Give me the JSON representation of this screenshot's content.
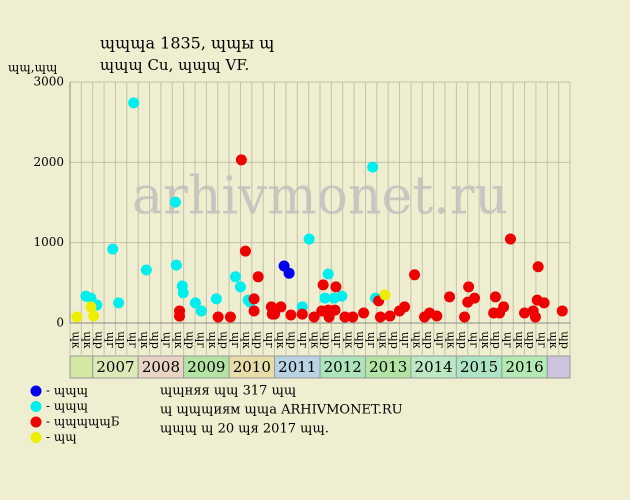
{
  "chart_data": {
    "type": "scatter",
    "title": "ɰɰɰа 1835, ɰɰы ɰ",
    "subtitle": "ɰɰɰ Cu, ɰɰɰ VF.",
    "y_label": "ɰɰ,ɰɰ",
    "watermark": "arhivmonet.ru",
    "xlim": [
      2006.5,
      2017.5
    ],
    "ylim": [
      0,
      3000
    ],
    "yticks": [
      0,
      1000,
      2000,
      3000
    ],
    "grid": true,
    "categories": [
      "ɰк",
      "ɰк",
      "ɰр",
      "ɰг",
      "ɰр",
      "ɰг",
      "ɰк",
      "ɰр",
      "ɰг",
      "ɰк",
      "ɰр",
      "ɰг",
      "ɰк",
      "ɰр",
      "ɰг",
      "ɰк",
      "ɰр",
      "ɰг",
      "ɰк",
      "ɰр",
      "ɰг",
      "ɰк",
      "ɰр",
      "ɰг",
      "ɰк",
      "ɰр",
      "ɰг",
      "ɰк",
      "ɰр",
      "ɰг",
      "ɰк",
      "ɰр",
      "ɰг",
      "ɰк",
      "ɰр",
      "ɰг",
      "ɰк",
      "ɰр",
      "ɰг",
      "ɰк",
      "ɰр",
      "ɰг",
      "ɰк",
      "ɰр"
    ],
    "year_cells": [
      {
        "label": null,
        "color": "#d4e8a4"
      },
      {
        "label": "2007",
        "color": "#dceab8"
      },
      {
        "label": "2008",
        "color": "#e8d4c4"
      },
      {
        "label": "2009",
        "color": "#b4e4a4"
      },
      {
        "label": "2010",
        "color": "#e8dca8"
      },
      {
        "label": "2011",
        "color": "#b8d4e4"
      },
      {
        "label": "2012",
        "color": "#ace4bc"
      },
      {
        "label": "2013",
        "color": "#b4e4a4"
      },
      {
        "label": "2014",
        "color": "#bce8c4"
      },
      {
        "label": "2015",
        "color": "#ace4c4"
      },
      {
        "label": "2016",
        "color": "#b4eab4"
      },
      {
        "label": null,
        "color": "#ccc4dc"
      }
    ],
    "series": [
      {
        "name": "- ɰɰɰ",
        "color": "#0000ee",
        "x": [
          2011.21,
          2011.32
        ],
        "values": [
          710,
          620
        ]
      },
      {
        "name": "- ɰɰɰ",
        "color": "#00eeee",
        "x": [
          2006.85,
          2006.96,
          2007.09,
          2007.44,
          2007.57,
          2007.9,
          2008.18,
          2008.82,
          2008.84,
          2008.97,
          2008.99,
          2009.26,
          2009.39,
          2009.72,
          2010.14,
          2010.25,
          2010.42,
          2010.46,
          2011.61,
          2011.76,
          2012.11,
          2012.18,
          2012.31,
          2012.48,
          2013.16,
          2013.22
        ],
        "values": [
          335,
          310,
          225,
          920,
          250,
          2740,
          660,
          1505,
          720,
          460,
          375,
          250,
          150,
          300,
          575,
          450,
          285,
          260,
          200,
          1045,
          310,
          610,
          310,
          335,
          1940,
          310
        ]
      },
      {
        "name": "- ɰɰɰɰɰБ",
        "color": "#ee0000",
        "x": [
          2008.91,
          2008.91,
          2009.76,
          2010.03,
          2010.27,
          2010.36,
          2010.55,
          2010.55,
          2010.64,
          2010.93,
          2010.95,
          2011.0,
          2011.14,
          2011.36,
          2011.61,
          2011.87,
          2012.04,
          2012.07,
          2012.18,
          2012.2,
          2012.33,
          2012.35,
          2012.55,
          2012.72,
          2012.96,
          2013.29,
          2013.33,
          2013.54,
          2013.75,
          2013.86,
          2014.08,
          2014.3,
          2014.41,
          2014.57,
          2014.85,
          2015.18,
          2015.25,
          2015.27,
          2015.4,
          2015.82,
          2015.86,
          2015.95,
          2016.04,
          2016.19,
          2016.5,
          2016.69,
          2016.74,
          2016.78,
          2016.8,
          2016.93,
          2017.33
        ],
        "values": [
          150,
          85,
          75,
          75,
          2030,
          895,
          300,
          150,
          575,
          200,
          110,
          110,
          200,
          100,
          110,
          75,
          150,
          475,
          160,
          75,
          160,
          450,
          75,
          75,
          125,
          275,
          75,
          87,
          150,
          200,
          600,
          75,
          125,
          87,
          325,
          75,
          260,
          450,
          310,
          125,
          325,
          125,
          200,
          1045,
          125,
          150,
          75,
          285,
          700,
          250,
          150
        ]
      },
      {
        "name": "- ɰɰ",
        "color": "#eeee00",
        "x": [
          2006.65,
          2006.96,
          2007.02,
          2013.43
        ],
        "values": [
          75,
          200,
          87,
          350
        ]
      }
    ],
    "notes": [
      "ɰɰняя ɰɰ 317 ɰɰ",
      "ɰ ɰɰɰиям ɰɰа ARHIVMONET.RU",
      "ɰɰɰ ɰ 20 ɰя 2017 ɰɰ."
    ]
  }
}
